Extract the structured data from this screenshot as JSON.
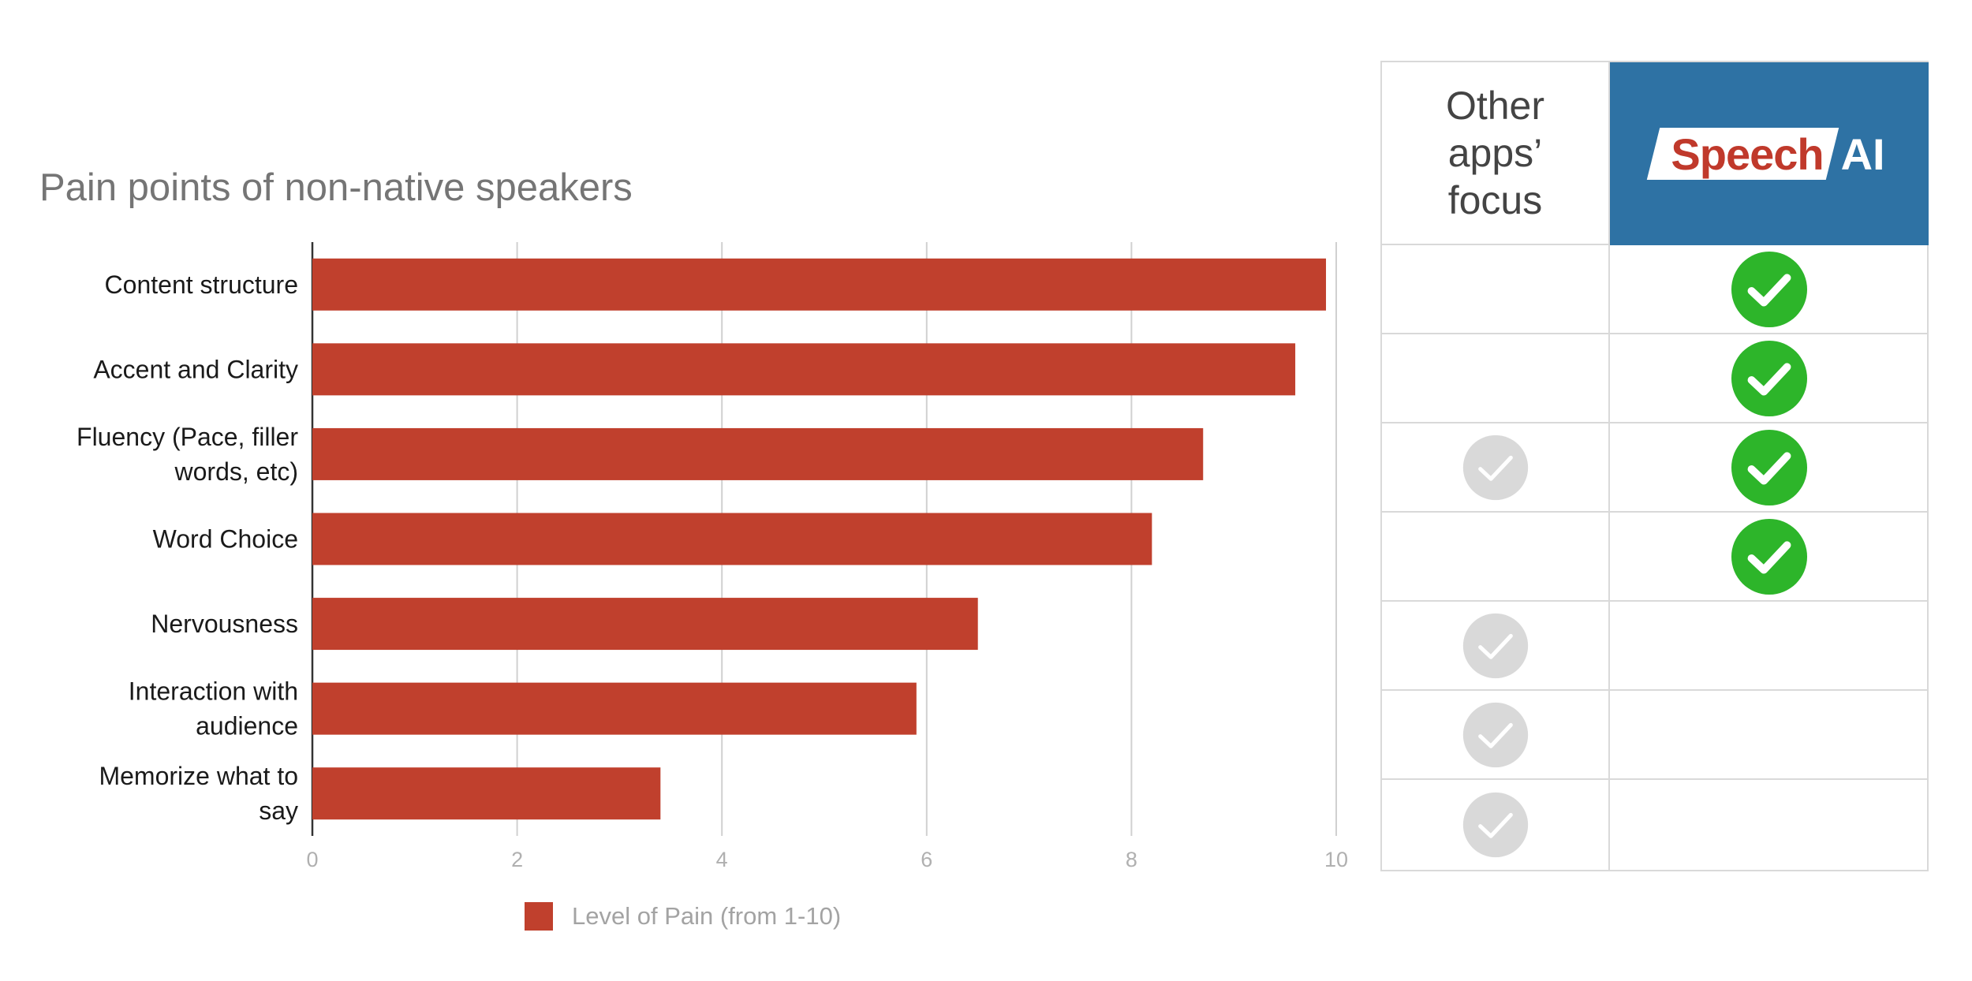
{
  "chart_data": {
    "type": "bar",
    "orientation": "horizontal",
    "title": "Pain points of non-native speakers",
    "categories": [
      "Content structure",
      "Accent and Clarity",
      "Fluency (Pace, filler\nwords, etc)",
      "Word Choice",
      "Nervousness",
      "Interaction with\naudience",
      "Memorize what to\nsay"
    ],
    "series": [
      {
        "name": "Level of Pain (from 1-10)",
        "values": [
          9.9,
          9.6,
          8.7,
          8.2,
          6.5,
          5.9,
          3.4
        ],
        "color": "#c0402d"
      }
    ],
    "xlim": [
      0,
      10
    ],
    "xticks": [
      0,
      2,
      4,
      6,
      8,
      10
    ],
    "grid": true,
    "legend": "bottom"
  },
  "comparison_table": {
    "other_header": "Other\napps’\nfocus",
    "brand_logo": {
      "part1": "Speech",
      "part2": "AI"
    },
    "header_color": "#2e72a4",
    "rows": [
      {
        "other": false,
        "brand": true
      },
      {
        "other": false,
        "brand": true
      },
      {
        "other": true,
        "brand": true
      },
      {
        "other": false,
        "brand": true
      },
      {
        "other": true,
        "brand": false
      },
      {
        "other": true,
        "brand": false
      },
      {
        "other": true,
        "brand": false
      }
    ],
    "other_check_color": "#d9d9d9",
    "brand_check_color": "#2db52a"
  }
}
